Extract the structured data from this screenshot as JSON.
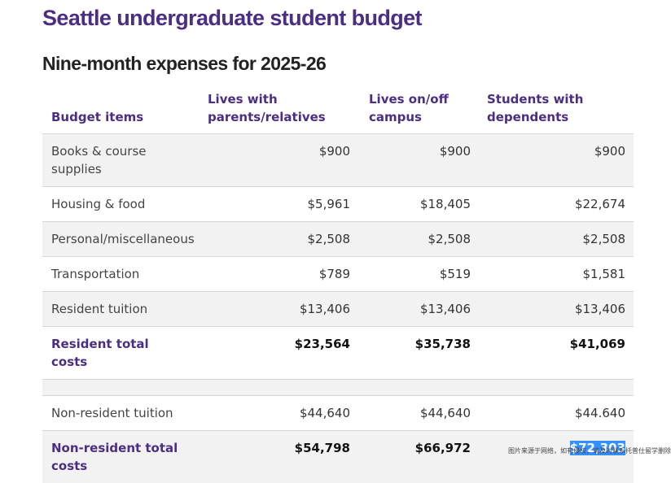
{
  "page": {
    "title": "Seattle undergraduate student budget",
    "section_title": "Nine-month expenses for 2025-26"
  },
  "table": {
    "headers": [
      "Budget items",
      "Lives with parents/relatives",
      "Lives on/off campus",
      "Students with dependents"
    ],
    "rows": [
      {
        "label": "Books & course supplies",
        "values": [
          "$900",
          "$900",
          "$900"
        ]
      },
      {
        "label": "Housing & food",
        "values": [
          "$5,961",
          "$18,405",
          "$22,674"
        ]
      },
      {
        "label": "Personal/miscellaneous",
        "values": [
          "$2,508",
          "$2,508",
          "$2,508"
        ]
      },
      {
        "label": "Transportation",
        "values": [
          "$789",
          "$519",
          "$1,581"
        ]
      },
      {
        "label": "Resident tuition",
        "values": [
          "$13,406",
          "$13,406",
          "$13,406"
        ]
      },
      {
        "label": "Resident total costs",
        "values": [
          "$23,564",
          "$35,738",
          "$41,069"
        ]
      },
      {
        "label": "",
        "values": [
          "",
          "",
          ""
        ]
      },
      {
        "label": "Non-resident tuition",
        "values": [
          "$44,640",
          "$44,640",
          "$44.640"
        ]
      },
      {
        "label": "Non-resident total costs",
        "values": [
          "$54,798",
          "$66,972",
          "$72,303"
        ]
      }
    ]
  },
  "watermark": "图片来源于网络，如有侵权，请及时联系托普仕留学删除",
  "colors": {
    "accent": "#4b2e83",
    "row_shade": "#f2f2f2",
    "selection": "#3390ff"
  }
}
